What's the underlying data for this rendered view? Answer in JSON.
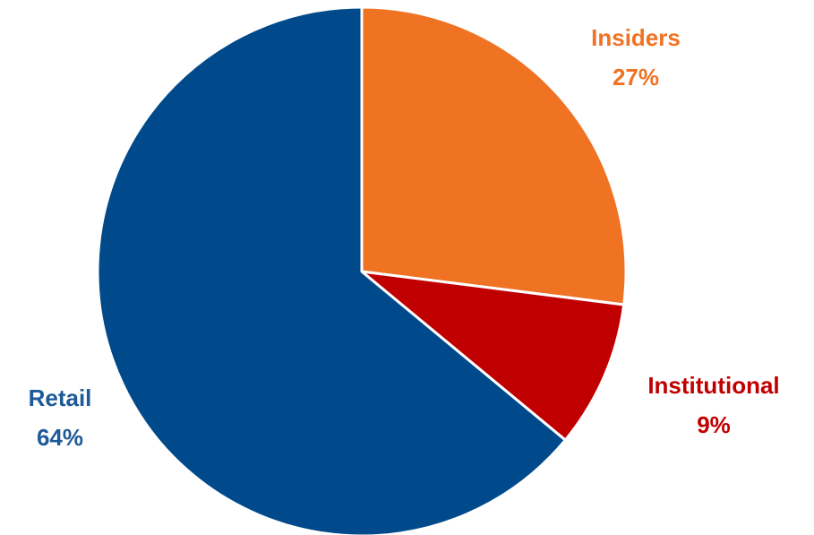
{
  "chart_data": {
    "type": "pie",
    "title": "",
    "start_angle_deg": 0,
    "direction": "clockwise",
    "slices": [
      {
        "label": "Insiders",
        "value": 27,
        "value_label": "27%",
        "color": "#F07223",
        "label_color": "#F07223"
      },
      {
        "label": "Institutional",
        "value": 9,
        "value_label": "9%",
        "color": "#C00000",
        "label_color": "#C00000"
      },
      {
        "label": "Retail",
        "value": 64,
        "value_label": "64%",
        "color": "#004A8C",
        "label_color": "#1E5A97"
      }
    ],
    "slice_border_color": "#ffffff",
    "legend": "none"
  }
}
